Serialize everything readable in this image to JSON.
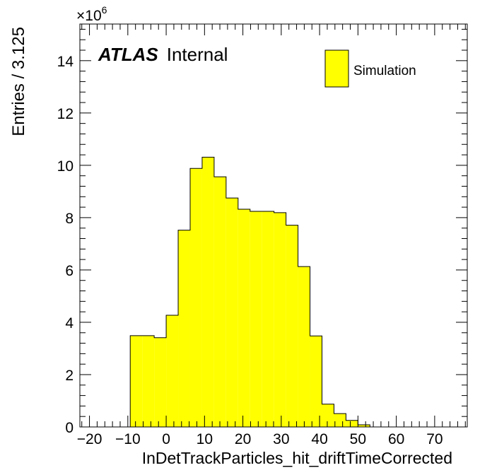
{
  "chart_data": {
    "type": "bar",
    "histogram": true,
    "title": "",
    "xlabel": "InDetTrackParticles_hit_driftTimeCorrected",
    "ylabel": "Entries / 3.125",
    "y_multiplier_label": "×10",
    "y_multiplier_exponent": "6",
    "xlim": [
      -22.5,
      78.5
    ],
    "ylim": [
      0,
      15.4
    ],
    "bin_width": 3.125,
    "x_ticks": [
      -20,
      -10,
      0,
      10,
      20,
      30,
      40,
      50,
      60,
      70
    ],
    "x_tick_labels": [
      "−20",
      "−10",
      "0",
      "10",
      "20",
      "30",
      "40",
      "50",
      "60",
      "70"
    ],
    "y_ticks": [
      0,
      2,
      4,
      6,
      8,
      10,
      12,
      14
    ],
    "y_tick_labels": [
      "0",
      "2",
      "4",
      "6",
      "8",
      "10",
      "12",
      "14"
    ],
    "bin_edges": [
      -9.375,
      -6.25,
      -3.125,
      0,
      3.125,
      6.25,
      9.375,
      12.5,
      15.625,
      18.75,
      21.875,
      25,
      28.125,
      31.25,
      34.375,
      37.5,
      40.625,
      43.75,
      46.875,
      50,
      53.125
    ],
    "values": [
      3.49,
      3.49,
      3.41,
      4.27,
      7.52,
      9.88,
      10.31,
      9.56,
      8.75,
      8.32,
      8.24,
      8.24,
      8.19,
      7.71,
      6.13,
      3.48,
      0.87,
      0.51,
      0.25,
      0.08
    ],
    "series": [
      {
        "name": "Simulation",
        "color": "#ffff00"
      }
    ],
    "legend_position": "top-right",
    "annotation": {
      "experiment": "ATLAS",
      "status": "Internal"
    },
    "grid": false
  }
}
